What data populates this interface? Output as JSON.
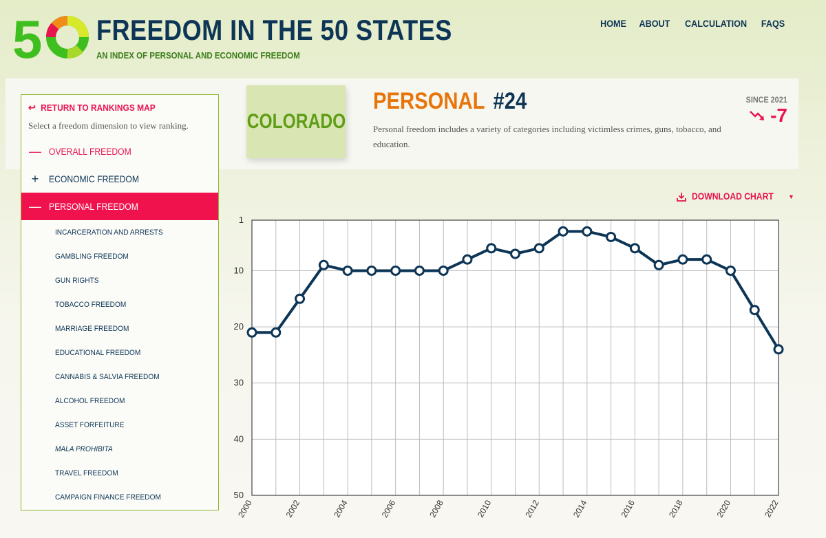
{
  "header": {
    "logo_text": "50",
    "title": "FREEDOM IN THE 50 STATES",
    "subtitle": "AN INDEX OF PERSONAL AND ECONOMIC FREEDOM",
    "nav": [
      "HOME",
      "ABOUT",
      "CALCULATION",
      "FAQS"
    ]
  },
  "sidebar": {
    "return_label": "RETURN TO RANKINGS MAP",
    "hint": "Select a freedom dimension to view ranking.",
    "overall_label": "OVERALL FREEDOM",
    "economic_label": "ECONOMIC FREEDOM",
    "personal_label": "PERSONAL FREEDOM",
    "sub_items": [
      "INCARCERATION AND ARRESTS",
      "GAMBLING FREEDOM",
      "GUN RIGHTS",
      "TOBACCO FREEDOM",
      "MARRIAGE FREEDOM",
      "EDUCATIONAL FREEDOM",
      "CANNABIS & SALVIA FREEDOM",
      "ALCOHOL FREEDOM",
      "ASSET FORFEITURE",
      "MALA PROHIBITA",
      "TRAVEL FREEDOM",
      "CAMPAIGN FINANCE FREEDOM"
    ]
  },
  "state": {
    "name": "COLORADO"
  },
  "dimension": {
    "name": "PERSONAL",
    "rank": "#24",
    "description": "Personal freedom includes a variety of categories including victimless crimes, guns, tobacco, and education.",
    "since_label": "SINCE 2021",
    "change": "-7"
  },
  "download_label": "DOWNLOAD CHART",
  "colors": {
    "navy": "#0d3556",
    "pink": "#e8134f",
    "orange": "#e8750a",
    "green": "#5f9d17",
    "border_green": "#8cb833"
  },
  "chart_data": {
    "type": "line",
    "x": [
      2000,
      2001,
      2002,
      2003,
      2004,
      2005,
      2006,
      2007,
      2008,
      2009,
      2010,
      2011,
      2012,
      2013,
      2014,
      2015,
      2016,
      2017,
      2018,
      2019,
      2020,
      2021,
      2022
    ],
    "y": [
      21,
      21,
      15,
      9,
      10,
      10,
      10,
      10,
      10,
      8,
      6,
      7,
      6,
      3,
      3,
      4,
      6,
      9,
      8,
      8,
      10,
      17,
      24
    ],
    "x_tick_labels": [
      "2000",
      "2002",
      "2004",
      "2006",
      "2008",
      "2010",
      "2012",
      "2014",
      "2016",
      "2018",
      "2020",
      "2022"
    ],
    "y_tick_labels": [
      "1",
      "10",
      "20",
      "30",
      "40",
      "50"
    ],
    "y_ticks": [
      1,
      10,
      20,
      30,
      40,
      50
    ],
    "ylim": [
      1,
      50
    ],
    "y_inverted": true,
    "grid": true
  }
}
